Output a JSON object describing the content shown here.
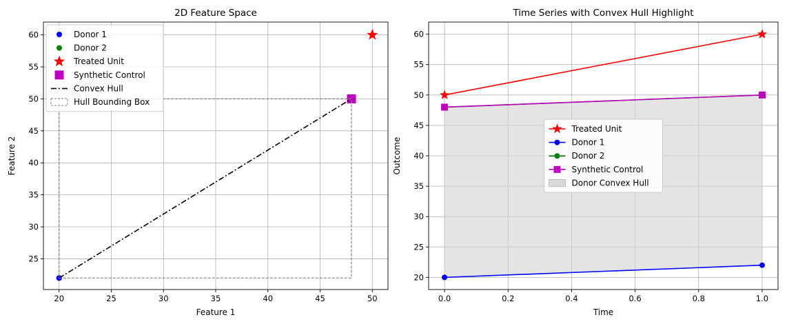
{
  "chart_data": [
    {
      "type": "scatter",
      "title": "2D Feature Space",
      "xlabel": "Feature 1",
      "ylabel": "Feature 2",
      "xlim": [
        18.5,
        51.5
      ],
      "ylim": [
        20.2,
        62.0
      ],
      "xticks": [
        20,
        25,
        30,
        35,
        40,
        45,
        50
      ],
      "yticks": [
        25,
        30,
        35,
        40,
        45,
        50,
        55,
        60
      ],
      "grid": true,
      "legend_position": "top-left",
      "series": [
        {
          "name": "Donor 1",
          "marker": "circle",
          "color": "#0000ff",
          "points": [
            [
              20,
              22
            ]
          ]
        },
        {
          "name": "Donor 2",
          "marker": "circle",
          "color": "#008000",
          "points": [
            [
              48,
              50
            ]
          ]
        },
        {
          "name": "Treated Unit",
          "marker": "star",
          "color": "#ff0000",
          "points": [
            [
              50,
              60
            ]
          ]
        },
        {
          "name": "Synthetic Control",
          "marker": "square",
          "color": "#bf00bf",
          "points": [
            [
              48,
              50
            ]
          ]
        },
        {
          "name": "Convex Hull",
          "line": "dashdot",
          "color": "#000000",
          "points": [
            [
              20,
              22
            ],
            [
              48,
              50
            ]
          ]
        },
        {
          "name": "Hull Bounding Box",
          "line": "dashed-box",
          "color": "#808080",
          "points": [
            [
              20,
              22
            ],
            [
              48,
              22
            ],
            [
              48,
              50
            ],
            [
              20,
              50
            ]
          ]
        }
      ]
    },
    {
      "type": "line",
      "title": "Time Series with Convex Hull Highlight",
      "xlabel": "Time",
      "ylabel": "Outcome",
      "xlim": [
        -0.05,
        1.05
      ],
      "ylim": [
        18.0,
        62.0
      ],
      "xticks": [
        0.0,
        0.2,
        0.4,
        0.6,
        0.8,
        1.0
      ],
      "xtick_labels": [
        "0.0",
        "0.2",
        "0.4",
        "0.6",
        "0.8",
        "1.0"
      ],
      "yticks": [
        20,
        25,
        30,
        35,
        40,
        45,
        50,
        55,
        60
      ],
      "grid": true,
      "legend_position": "center",
      "x": [
        0,
        1
      ],
      "series": [
        {
          "name": "Treated Unit",
          "marker": "star",
          "color": "#ff0000",
          "values": [
            50,
            60
          ]
        },
        {
          "name": "Donor 1",
          "marker": "circle",
          "color": "#0000ff",
          "values": [
            20,
            22
          ]
        },
        {
          "name": "Donor 2",
          "marker": "circle",
          "color": "#008000",
          "values": [
            48,
            50
          ]
        },
        {
          "name": "Synthetic Control",
          "marker": "square",
          "color": "#bf00bf",
          "values": [
            48,
            50
          ]
        }
      ],
      "fill": {
        "name": "Donor Convex Hull",
        "color": "#d3d3d3",
        "lower": [
          20,
          22
        ],
        "upper": [
          48,
          50
        ]
      }
    }
  ]
}
